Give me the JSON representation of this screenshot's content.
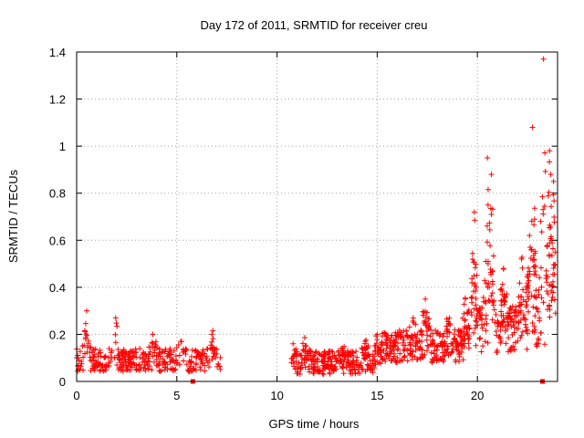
{
  "chart_data": {
    "type": "scatter",
    "title": "Day 172 of 2011, SRMTID for receiver creu",
    "xlabel": "GPS time / hours",
    "ylabel": "SRMTID / TECUs",
    "xlim": [
      0,
      24
    ],
    "ylim": [
      0,
      1.4
    ],
    "x_ticks": [
      0,
      5,
      10,
      15,
      20
    ],
    "x_tick_labels": [
      "0",
      "5",
      "10",
      "15",
      "20"
    ],
    "y_ticks": [
      0,
      0.2,
      0.4,
      0.6,
      0.8,
      1,
      1.2,
      1.4
    ],
    "y_tick_labels": [
      "0",
      "0.2",
      "0.4",
      "0.6",
      "0.8",
      "1",
      "1.2",
      "1.4"
    ],
    "grid": true,
    "marker": "plus",
    "series_color": "#ff0000",
    "segments": [
      {
        "x_start": 0.0,
        "x_end": 7.2,
        "baseline": 0.09,
        "spread": 0.05,
        "count": 380,
        "peaks": [
          [
            0.5,
            0.3
          ],
          [
            1.95,
            0.27
          ],
          [
            3.8,
            0.2
          ],
          [
            5.2,
            0.17
          ],
          [
            6.75,
            0.2
          ]
        ]
      },
      {
        "x_start": 10.7,
        "x_end": 15.2,
        "baseline": 0.08,
        "spread": 0.05,
        "count": 320,
        "peaks": [
          [
            10.8,
            0.16
          ],
          [
            11.4,
            0.15
          ],
          [
            13.2,
            0.14
          ],
          [
            14.4,
            0.17
          ],
          [
            15.0,
            0.2
          ]
        ]
      },
      {
        "x_start": 15.2,
        "x_end": 19.5,
        "baseline": 0.15,
        "spread": 0.07,
        "count": 320,
        "peaks": [
          [
            17.4,
            0.35
          ],
          [
            16.8,
            0.27
          ],
          [
            18.6,
            0.27
          ],
          [
            19.4,
            0.35
          ]
        ]
      },
      {
        "x_start": 19.5,
        "x_end": 23.9,
        "baseline": 0.22,
        "spread": 0.1,
        "count": 380,
        "peaks": [
          [
            19.85,
            0.72
          ],
          [
            20.5,
            0.95
          ],
          [
            20.7,
            0.88
          ],
          [
            21.3,
            0.48
          ],
          [
            22.2,
            0.52
          ],
          [
            22.6,
            0.62
          ],
          [
            22.75,
            1.08
          ],
          [
            23.3,
            1.37
          ],
          [
            23.6,
            0.98
          ],
          [
            23.8,
            0.85
          ]
        ]
      }
    ],
    "outliers": [
      [
        5.8,
        0.0
      ],
      [
        23.25,
        0.0
      ]
    ]
  }
}
